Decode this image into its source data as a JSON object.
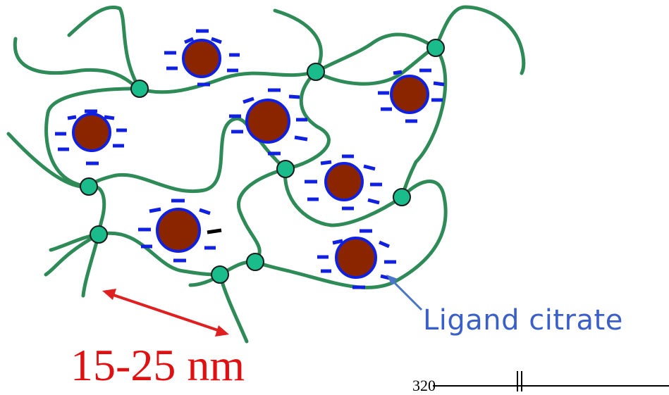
{
  "labels": {
    "ligand": "Ligand citrate",
    "size": "15-25 nm",
    "axis_tick": "320"
  },
  "colors": {
    "polymer": "#2e8b57",
    "crosslink": "#1abc8c",
    "particle_fill": "#8b2500",
    "particle_ring": "#1020e0",
    "charge": "#1020e0",
    "ligand_text": "#3a5fc8",
    "ligand_arrow": "#4a74c8",
    "size_text": "#e01010",
    "size_arrow": "#e02020",
    "black_charge": "#000000"
  }
}
